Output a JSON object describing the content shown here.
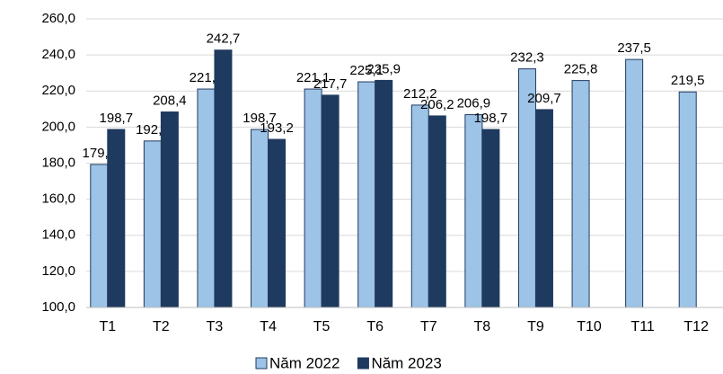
{
  "chart_data": {
    "type": "bar",
    "categories": [
      "T1",
      "T2",
      "T3",
      "T4",
      "T5",
      "T6",
      "T7",
      "T8",
      "T9",
      "T10",
      "T11",
      "T12"
    ],
    "series": [
      {
        "name": "Năm 2022",
        "color": "#9dc3e6",
        "values": [
          179.3,
          192.3,
          221.1,
          198.7,
          221.1,
          225.1,
          212.2,
          206.9,
          232.3,
          225.8,
          237.5,
          219.5
        ],
        "value_labels": [
          "179,3",
          "192,3",
          "221,1",
          "198,7",
          "221,1",
          "225,1",
          "212,2",
          "206,9",
          "232,3",
          "225,8",
          "237,5",
          "219,5"
        ]
      },
      {
        "name": "Năm 2023",
        "color": "#1f3a5f",
        "values": [
          198.7,
          208.4,
          242.7,
          193.2,
          217.7,
          225.9,
          206.2,
          198.7,
          209.7,
          null,
          null,
          null
        ],
        "value_labels": [
          "198,7",
          "208,4",
          "242,7",
          "193,2",
          "217,7",
          "225,9",
          "206,2",
          "198,7",
          "209,7",
          null,
          null,
          null
        ]
      }
    ],
    "ylim": [
      100,
      260
    ],
    "yticks": [
      {
        "value": 100,
        "label": "100,0"
      },
      {
        "value": 120,
        "label": "120,0"
      },
      {
        "value": 140,
        "label": "140,0"
      },
      {
        "value": 160,
        "label": "160,0"
      },
      {
        "value": 180,
        "label": "180,0"
      },
      {
        "value": 200,
        "label": "200,0"
      },
      {
        "value": 220,
        "label": "220,0"
      },
      {
        "value": 240,
        "label": "240,0"
      },
      {
        "value": 260,
        "label": "260,0"
      }
    ],
    "grid": true,
    "legend": "bottom"
  }
}
